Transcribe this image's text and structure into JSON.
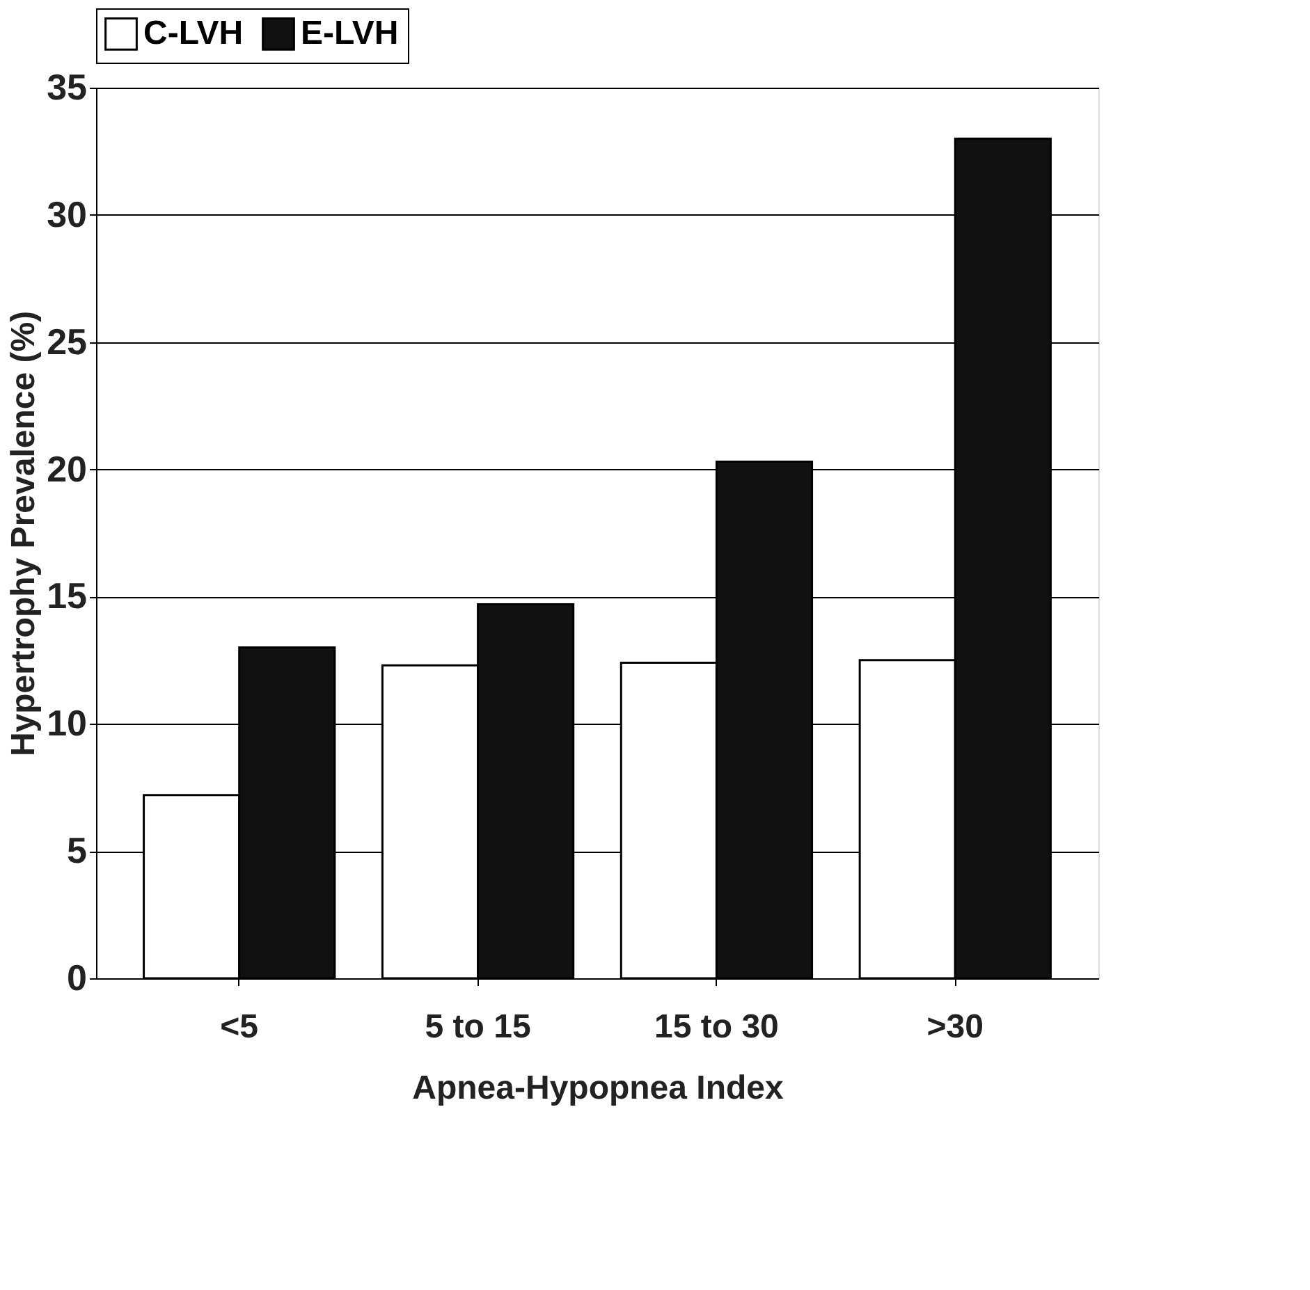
{
  "chart_data": {
    "type": "bar",
    "xlabel": "Apnea-Hypopnea Index",
    "ylabel": "Hypertrophy Prevalence (%)",
    "categories": [
      "<5",
      "5 to 15",
      "15 to 30",
      ">30"
    ],
    "series": [
      {
        "name": "C-LVH",
        "color": "#ffffff",
        "values": [
          7.2,
          12.3,
          12.4,
          12.5
        ]
      },
      {
        "name": "E-LVH",
        "color": "#111111",
        "values": [
          13.0,
          14.7,
          20.3,
          33.0
        ]
      }
    ],
    "ylim": [
      0,
      35
    ],
    "yticks": [
      0,
      5,
      10,
      15,
      20,
      25,
      30,
      35
    ],
    "grid": "y",
    "legend": "top"
  }
}
